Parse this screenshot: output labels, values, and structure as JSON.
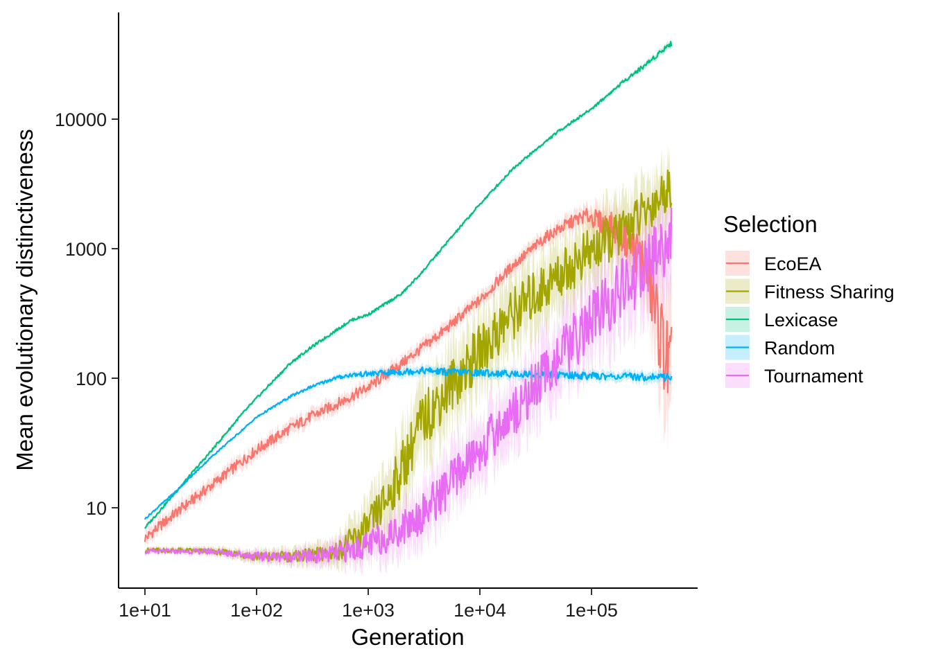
{
  "chart_data": {
    "type": "line",
    "xlabel": "Generation",
    "ylabel": "Mean evolutionary distinctiveness",
    "x_scale": "log10",
    "y_scale": "log10",
    "xlim": [
      10,
      550000
    ],
    "ylim": [
      2.5,
      65000
    ],
    "x_ticks": [
      10,
      100,
      1000,
      10000,
      100000
    ],
    "x_tick_labels": [
      "1e+01",
      "1e+02",
      "1e+03",
      "1e+04",
      "1e+05"
    ],
    "y_ticks": [
      10,
      100,
      1000,
      10000
    ],
    "y_tick_labels": [
      "10",
      "100",
      "1000",
      "10000"
    ],
    "grid": false,
    "legend": {
      "title": "Selection",
      "position": "right"
    },
    "series": [
      {
        "name": "EcoEA",
        "color": "#F8766D",
        "x": [
          10,
          20,
          40,
          70,
          100,
          150,
          200,
          300,
          500,
          700,
          1000,
          2000,
          3000,
          5000,
          7000,
          10000,
          20000,
          40000,
          70000,
          90000,
          100000,
          120000,
          150000,
          200000,
          300000,
          400000,
          500000
        ],
        "y": [
          5.8,
          9.5,
          15,
          22,
          28,
          35,
          41,
          50,
          62,
          72,
          85,
          130,
          170,
          240,
          310,
          400,
          750,
          1250,
          1650,
          1800,
          1750,
          1600,
          1500,
          1200,
          800,
          250,
          110
        ],
        "band": [
          0.12,
          0.12,
          0.12,
          0.12,
          0.12,
          0.12,
          0.12,
          0.12,
          0.12,
          0.12,
          0.12,
          0.12,
          0.12,
          0.12,
          0.12,
          0.12,
          0.12,
          0.12,
          0.15,
          0.15,
          0.2,
          0.25,
          0.3,
          0.4,
          0.6,
          0.9,
          1.1
        ]
      },
      {
        "name": "Fitness Sharing",
        "color": "#A3A500",
        "x": [
          10,
          20,
          40,
          70,
          100,
          200,
          300,
          500,
          700,
          1000,
          1500,
          2000,
          3000,
          5000,
          7000,
          10000,
          20000,
          50000,
          100000,
          200000,
          300000,
          500000
        ],
        "y": [
          4.7,
          4.7,
          4.6,
          4.4,
          4.2,
          4.2,
          4.3,
          4.5,
          5.5,
          7,
          12,
          20,
          45,
          80,
          110,
          160,
          320,
          620,
          950,
          1400,
          1900,
          3000
        ],
        "band": [
          0.05,
          0.05,
          0.06,
          0.08,
          0.1,
          0.12,
          0.15,
          0.2,
          0.3,
          0.4,
          0.5,
          0.6,
          0.6,
          0.6,
          0.6,
          0.6,
          0.6,
          0.55,
          0.55,
          0.5,
          0.5,
          0.45
        ]
      },
      {
        "name": "Lexicase",
        "color": "#00BF7D",
        "x": [
          10,
          20,
          40,
          70,
          100,
          200,
          300,
          500,
          700,
          1000,
          2000,
          3000,
          5000,
          10000,
          20000,
          50000,
          100000,
          200000,
          300000,
          500000
        ],
        "y": [
          7,
          14,
          28,
          50,
          70,
          130,
          170,
          230,
          280,
          310,
          450,
          650,
          1100,
          2200,
          4200,
          8000,
          12000,
          20000,
          26000,
          38000
        ],
        "band": [
          0.03,
          0.03,
          0.03,
          0.03,
          0.03,
          0.03,
          0.03,
          0.03,
          0.03,
          0.03,
          0.03,
          0.03,
          0.03,
          0.03,
          0.03,
          0.03,
          0.03,
          0.04,
          0.05,
          0.06
        ]
      },
      {
        "name": "Random",
        "color": "#00B0F6",
        "x": [
          10,
          20,
          40,
          70,
          100,
          200,
          300,
          500,
          700,
          1000,
          2000,
          3000,
          5000,
          10000,
          20000,
          50000,
          100000,
          200000,
          500000
        ],
        "y": [
          8.2,
          14,
          25,
          38,
          50,
          72,
          85,
          100,
          106,
          108,
          112,
          115,
          112,
          110,
          108,
          106,
          104,
          103,
          102
        ],
        "band": [
          0.02,
          0.02,
          0.02,
          0.02,
          0.02,
          0.03,
          0.03,
          0.04,
          0.05,
          0.06,
          0.08,
          0.08,
          0.08,
          0.08,
          0.08,
          0.08,
          0.08,
          0.08,
          0.1
        ]
      },
      {
        "name": "Tournament",
        "color": "#E76BF3",
        "x": [
          10,
          20,
          40,
          70,
          100,
          200,
          300,
          500,
          700,
          1000,
          1500,
          2000,
          3000,
          5000,
          7000,
          10000,
          20000,
          50000,
          100000,
          200000,
          300000,
          500000
        ],
        "y": [
          4.6,
          4.6,
          4.6,
          4.4,
          4.2,
          4.2,
          4.2,
          4.4,
          4.7,
          5.2,
          6,
          7,
          9,
          14,
          20,
          28,
          55,
          140,
          280,
          500,
          700,
          1200
        ],
        "band": [
          0.05,
          0.05,
          0.06,
          0.08,
          0.1,
          0.12,
          0.15,
          0.2,
          0.25,
          0.3,
          0.35,
          0.4,
          0.45,
          0.5,
          0.5,
          0.5,
          0.55,
          0.6,
          0.65,
          0.7,
          0.75,
          0.8
        ]
      }
    ]
  }
}
